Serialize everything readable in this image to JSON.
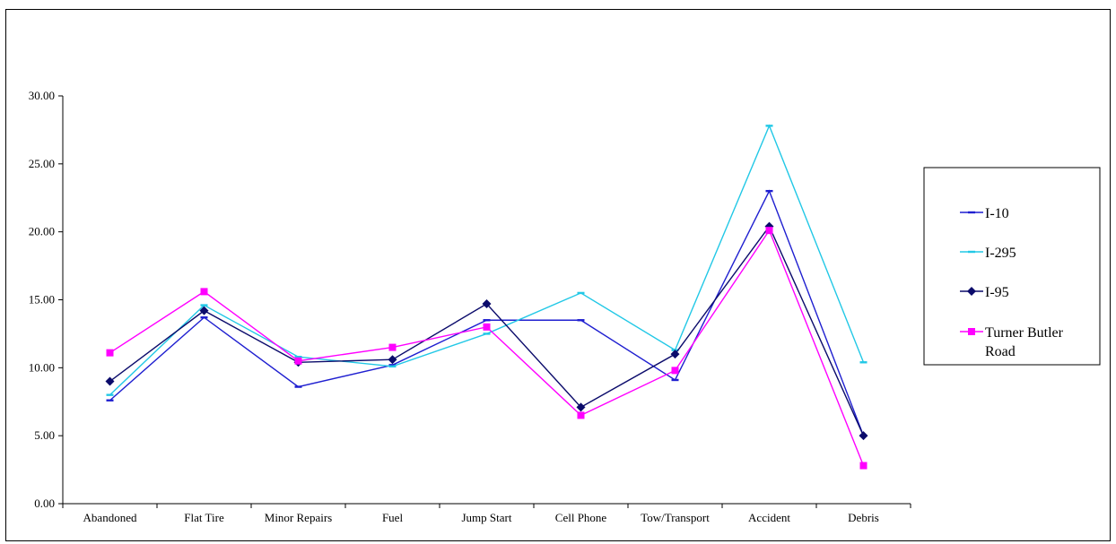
{
  "chart_data": {
    "type": "line",
    "title": "",
    "xlabel": "",
    "ylabel": "",
    "ylim": [
      0,
      30
    ],
    "yticks": [
      "0.00",
      "5.00",
      "10.00",
      "15.00",
      "20.00",
      "25.00",
      "30.00"
    ],
    "categories": [
      "Abandoned",
      "Flat Tire",
      "Minor Repairs",
      "Fuel",
      "Jump Start",
      "Cell Phone",
      "Tow/Transport",
      "Accident",
      "Debris"
    ],
    "legend_position": "right",
    "series": [
      {
        "name": "I-10",
        "color": "#1f1fd0",
        "marker": "dash",
        "values": [
          7.6,
          13.7,
          8.6,
          10.2,
          13.5,
          13.5,
          9.1,
          23.0,
          5.0
        ]
      },
      {
        "name": "I-295",
        "color": "#22c8e6",
        "marker": "dash",
        "values": [
          8.0,
          14.6,
          10.8,
          10.1,
          12.5,
          15.5,
          11.3,
          27.8,
          10.4
        ]
      },
      {
        "name": "I-95",
        "color": "#0b0b6b",
        "marker": "diamond",
        "values": [
          9.0,
          14.2,
          10.4,
          10.6,
          14.7,
          7.1,
          11.0,
          20.4,
          5.0
        ]
      },
      {
        "name": "Turner Butler Road",
        "color": "#ff00ff",
        "marker": "square",
        "values": [
          11.1,
          15.6,
          10.5,
          11.5,
          13.0,
          6.5,
          9.8,
          20.1,
          2.8
        ]
      }
    ]
  }
}
